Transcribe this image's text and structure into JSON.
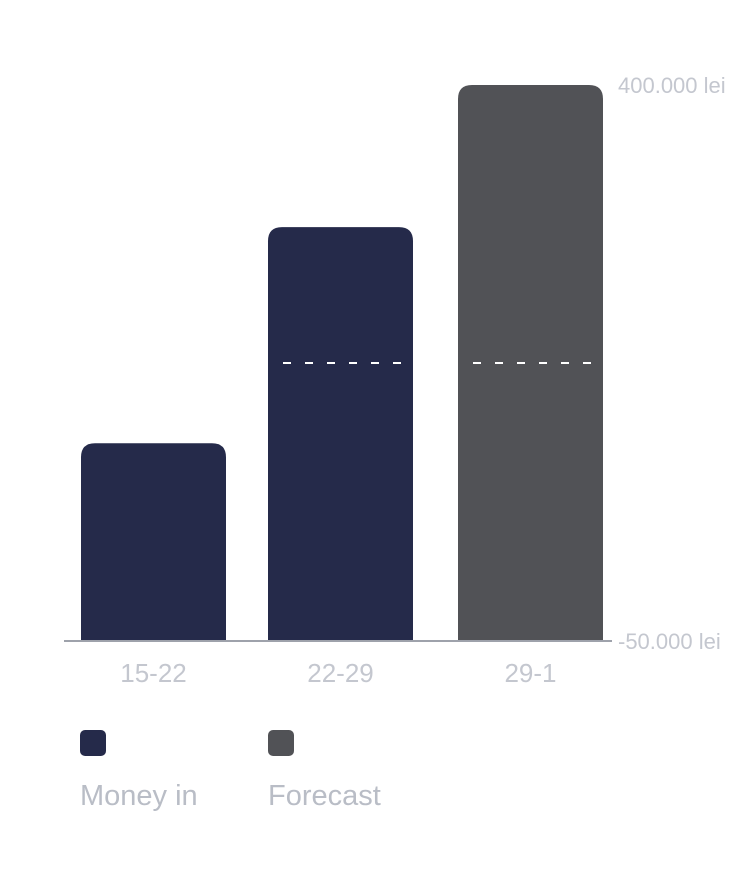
{
  "chart_data": {
    "type": "bar",
    "categories": [
      "15-22",
      "22-29",
      "29-1"
    ],
    "values": [
      110000,
      285000,
      400000
    ],
    "bar_kinds": [
      "money_in",
      "money_in",
      "forecast"
    ],
    "reference_value": 175000,
    "ylim": [
      -50000,
      400000
    ],
    "y_tick_labels": [
      {
        "value": 400000,
        "label": "400.000 lei"
      },
      {
        "value": -50000,
        "label": "-50.000 lei"
      }
    ],
    "grid": false,
    "legend_position": "bottom-left",
    "legend": [
      {
        "name": "Money in",
        "color": "#252a4a"
      },
      {
        "name": "Forecast",
        "color": "#515256"
      }
    ]
  },
  "colors": {
    "money_in": "#252a4a",
    "forecast": "#515256",
    "baseline": "#9ea2ab",
    "axis_text": "#c4c7cf",
    "dash": "#ffffff"
  }
}
